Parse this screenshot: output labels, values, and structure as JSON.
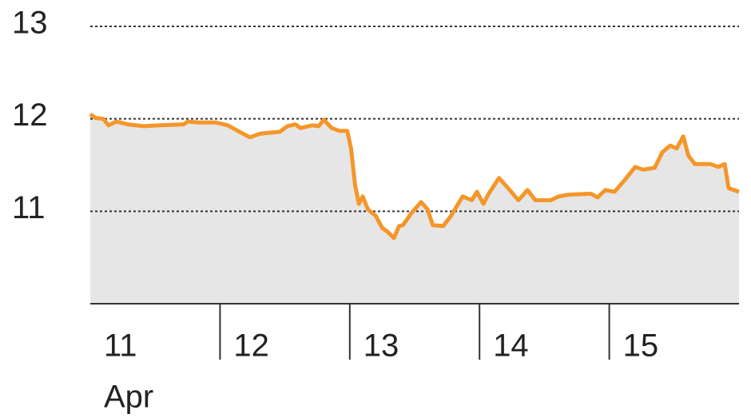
{
  "chart_data": {
    "type": "area",
    "x": [
      11.0,
      11.04,
      11.1,
      11.14,
      11.2,
      11.29,
      11.41,
      11.54,
      11.72,
      11.75,
      11.84,
      11.97,
      12.06,
      12.15,
      12.23,
      12.31,
      12.46,
      12.52,
      12.58,
      12.62,
      12.71,
      12.76,
      12.8,
      12.86,
      12.92,
      12.98,
      13.01,
      13.04,
      13.07,
      13.1,
      13.14,
      13.2,
      13.25,
      13.29,
      13.34,
      13.38,
      13.41,
      13.47,
      13.5,
      13.55,
      13.6,
      13.64,
      13.72,
      13.78,
      13.87,
      13.94,
      13.98,
      14.03,
      14.07,
      14.15,
      14.22,
      14.3,
      14.37,
      14.43,
      14.55,
      14.61,
      14.69,
      14.86,
      14.91,
      14.97,
      15.04,
      15.12,
      15.2,
      15.26,
      15.35,
      15.41,
      15.47,
      15.52,
      15.57,
      15.61,
      15.66,
      15.78,
      15.84,
      15.89,
      15.92,
      16.0
    ],
    "values": [
      12.05,
      12.01,
      12.0,
      11.93,
      11.97,
      11.94,
      11.92,
      11.93,
      11.94,
      11.97,
      11.96,
      11.96,
      11.93,
      11.86,
      11.8,
      11.84,
      11.86,
      11.92,
      11.94,
      11.9,
      11.93,
      11.92,
      11.99,
      11.9,
      11.87,
      11.87,
      11.68,
      11.29,
      11.08,
      11.16,
      11.02,
      10.95,
      10.82,
      10.78,
      10.71,
      10.84,
      10.85,
      10.97,
      11.02,
      11.1,
      11.02,
      10.85,
      10.84,
      10.95,
      11.16,
      11.12,
      11.21,
      11.08,
      11.19,
      11.36,
      11.25,
      11.12,
      11.23,
      11.12,
      11.12,
      11.16,
      11.18,
      11.19,
      11.15,
      11.23,
      11.21,
      11.34,
      11.48,
      11.45,
      11.47,
      11.64,
      11.71,
      11.68,
      11.81,
      11.6,
      11.51,
      11.51,
      11.48,
      11.51,
      11.25,
      11.21
    ],
    "color": "#f5962a",
    "fill_color": "#e6e6e6",
    "xlim": [
      11,
      16
    ],
    "xticks": [
      11,
      12,
      13,
      14,
      15
    ],
    "x_sublabel": "Apr",
    "ylim": [
      10,
      13
    ],
    "yticks": [
      11,
      12,
      13
    ],
    "grid": true
  }
}
